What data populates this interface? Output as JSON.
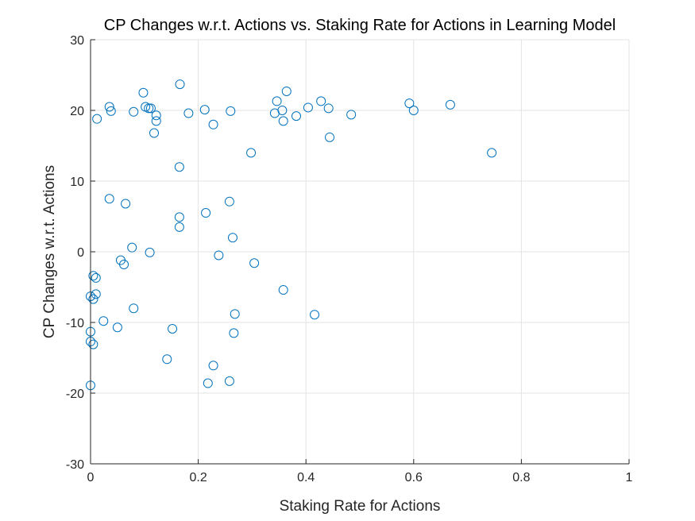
{
  "chart_data": {
    "type": "scatter",
    "title": "CP Changes w.r.t. Actions vs. Staking Rate for Actions in Learning Model",
    "xlabel": "Staking Rate for Actions",
    "ylabel": "CP Changes w.r.t. Actions",
    "xlim": [
      0,
      1
    ],
    "ylim": [
      -30,
      30
    ],
    "xticks": [
      0,
      0.2,
      0.4,
      0.6,
      0.8,
      1
    ],
    "xtick_labels": [
      "0",
      "0.2",
      "0.4",
      "0.6",
      "0.8",
      "1"
    ],
    "yticks": [
      -30,
      -20,
      -10,
      0,
      10,
      20,
      30
    ],
    "ytick_labels": [
      "-30",
      "-20",
      "-10",
      "0",
      "10",
      "20",
      "30"
    ],
    "grid": true,
    "marker": "circle",
    "marker_color": "#0072BD",
    "points": [
      [
        0.035,
        20.5
      ],
      [
        0.038,
        19.9
      ],
      [
        0.012,
        18.8
      ],
      [
        0.098,
        22.5
      ],
      [
        0.102,
        20.5
      ],
      [
        0.108,
        20.3
      ],
      [
        0.112,
        20.3
      ],
      [
        0.122,
        19.3
      ],
      [
        0.122,
        18.5
      ],
      [
        0.08,
        19.8
      ],
      [
        0.118,
        16.8
      ],
      [
        0.166,
        23.7
      ],
      [
        0.182,
        19.6
      ],
      [
        0.212,
        20.1
      ],
      [
        0.228,
        18.0
      ],
      [
        0.26,
        19.9
      ],
      [
        0.342,
        19.6
      ],
      [
        0.346,
        21.3
      ],
      [
        0.356,
        20.0
      ],
      [
        0.358,
        18.5
      ],
      [
        0.364,
        22.7
      ],
      [
        0.382,
        19.2
      ],
      [
        0.404,
        20.4
      ],
      [
        0.428,
        21.3
      ],
      [
        0.442,
        20.3
      ],
      [
        0.444,
        16.2
      ],
      [
        0.484,
        19.4
      ],
      [
        0.592,
        21.0
      ],
      [
        0.6,
        20.0
      ],
      [
        0.668,
        20.8
      ],
      [
        0.745,
        14.0
      ],
      [
        0.298,
        14.0
      ],
      [
        0.165,
        12.0
      ],
      [
        0.035,
        7.5
      ],
      [
        0.065,
        6.8
      ],
      [
        0.258,
        7.1
      ],
      [
        0.214,
        5.5
      ],
      [
        0.165,
        4.9
      ],
      [
        0.165,
        3.5
      ],
      [
        0.264,
        2.0
      ],
      [
        0.077,
        0.6
      ],
      [
        0.11,
        -0.1
      ],
      [
        0.238,
        -0.5
      ],
      [
        0.056,
        -1.2
      ],
      [
        0.062,
        -1.8
      ],
      [
        0.304,
        -1.6
      ],
      [
        0.005,
        -3.4
      ],
      [
        0.01,
        -3.7
      ],
      [
        0.01,
        -6.0
      ],
      [
        0.358,
        -5.4
      ],
      [
        0.0,
        -6.3
      ],
      [
        0.005,
        -6.7
      ],
      [
        0.08,
        -8.0
      ],
      [
        0.268,
        -8.8
      ],
      [
        0.416,
        -8.9
      ],
      [
        0.024,
        -9.8
      ],
      [
        0.05,
        -10.7
      ],
      [
        0.152,
        -10.9
      ],
      [
        0.266,
        -11.5
      ],
      [
        0.0,
        -11.3
      ],
      [
        0.0,
        -12.7
      ],
      [
        0.005,
        -13.1
      ],
      [
        0.142,
        -15.2
      ],
      [
        0.228,
        -16.1
      ],
      [
        0.218,
        -18.6
      ],
      [
        0.258,
        -18.3
      ],
      [
        0.0,
        -18.9
      ]
    ]
  }
}
